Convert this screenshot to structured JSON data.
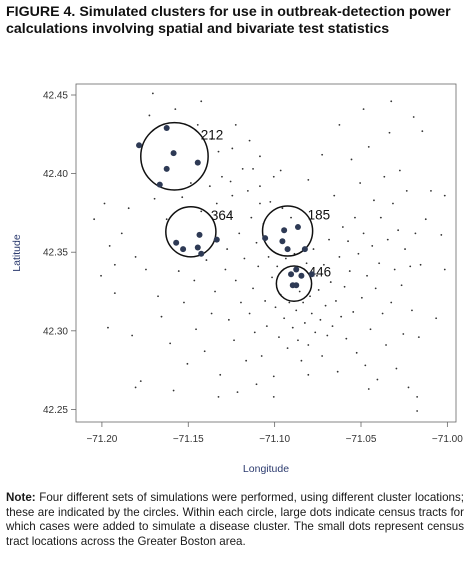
{
  "figure": {
    "title": "FIGURE 4. Simulated clusters for use in outbreak-detection power calculations involving spatial and bivariate test statistics",
    "note_label": "Note:",
    "note_text": "Four different sets of simulations were performed, using different cluster locations; these are indicated by the circles. Within each circle, large dots indicate census tracts for which cases were added to simulate a disease cluster. The small dots represent census tract locations across the Greater Boston area."
  },
  "chart_data": {
    "type": "scatter",
    "title": "",
    "xlabel": "Longitude",
    "ylabel": "Latitude",
    "xlim": [
      -71.215,
      -70.995
    ],
    "ylim": [
      42.242,
      42.457
    ],
    "x_ticks": [
      -71.2,
      -71.15,
      -71.1,
      -71.05,
      -71.0
    ],
    "x_tick_labels": [
      "−71.20",
      "−71.15",
      "−71.10",
      "−71.05",
      "−71.00"
    ],
    "y_ticks": [
      42.25,
      42.3,
      42.35,
      42.4,
      42.45
    ],
    "y_tick_labels": [
      "42.25",
      "42.30",
      "42.35",
      "42.40",
      "42.45"
    ],
    "grid": false,
    "clusters": [
      {
        "label": "212",
        "center": [
          -71.158,
          42.411
        ],
        "radius": 0.0195
      },
      {
        "label": "364",
        "center": [
          -71.1485,
          42.363
        ],
        "radius": 0.0145
      },
      {
        "label": "185",
        "center": [
          -71.0925,
          42.3635
        ],
        "radius": 0.0145
      },
      {
        "label": "446",
        "center": [
          -71.0888,
          42.33
        ],
        "radius": 0.0102
      }
    ],
    "case_tracts": [
      [
        -71.1785,
        42.418
      ],
      [
        -71.1625,
        42.429
      ],
      [
        -71.1585,
        42.413
      ],
      [
        -71.1625,
        42.403
      ],
      [
        -71.1665,
        42.393
      ],
      [
        -71.1445,
        42.407
      ],
      [
        -71.157,
        42.356
      ],
      [
        -71.153,
        42.352
      ],
      [
        -71.1445,
        42.353
      ],
      [
        -71.1435,
        42.361
      ],
      [
        -71.1425,
        42.349
      ],
      [
        -71.1335,
        42.358
      ],
      [
        -71.1055,
        42.359
      ],
      [
        -71.0945,
        42.364
      ],
      [
        -71.0955,
        42.357
      ],
      [
        -71.0865,
        42.366
      ],
      [
        -71.0925,
        42.352
      ],
      [
        -71.0825,
        42.352
      ],
      [
        -71.0905,
        42.336
      ],
      [
        -71.0875,
        42.339
      ],
      [
        -71.0845,
        42.335
      ],
      [
        -71.0785,
        42.336
      ],
      [
        -71.0895,
        42.329
      ],
      [
        -71.0875,
        42.329
      ]
    ],
    "census_tracts": [
      [
        -71.2045,
        42.371
      ],
      [
        -71.2005,
        42.335
      ],
      [
        -71.1985,
        42.381
      ],
      [
        -71.1955,
        42.354
      ],
      [
        -71.1925,
        42.342
      ],
      [
        -71.1885,
        42.362
      ],
      [
        -71.1845,
        42.378
      ],
      [
        -71.1825,
        42.297
      ],
      [
        -71.1805,
        42.347
      ],
      [
        -71.1775,
        42.268
      ],
      [
        -71.1745,
        42.339
      ],
      [
        -71.1725,
        42.437
      ],
      [
        -71.1695,
        42.384
      ],
      [
        -71.1675,
        42.322
      ],
      [
        -71.1655,
        42.309
      ],
      [
        -71.1625,
        42.371
      ],
      [
        -71.1605,
        42.292
      ],
      [
        -71.1575,
        42.441
      ],
      [
        -71.1555,
        42.338
      ],
      [
        -71.1535,
        42.385
      ],
      [
        -71.1525,
        42.318
      ],
      [
        -71.1505,
        42.279
      ],
      [
        -71.1485,
        42.394
      ],
      [
        -71.1465,
        42.332
      ],
      [
        -71.1455,
        42.301
      ],
      [
        -71.1425,
        42.376
      ],
      [
        -71.1405,
        42.287
      ],
      [
        -71.1395,
        42.345
      ],
      [
        -71.1375,
        42.392
      ],
      [
        -71.1365,
        42.311
      ],
      [
        -71.1345,
        42.325
      ],
      [
        -71.1335,
        42.381
      ],
      [
        -71.1315,
        42.272
      ],
      [
        -71.1305,
        42.398
      ],
      [
        -71.1285,
        42.339
      ],
      [
        -71.1275,
        42.352
      ],
      [
        -71.1265,
        42.307
      ],
      [
        -71.1255,
        42.374
      ],
      [
        -71.1245,
        42.386
      ],
      [
        -71.1235,
        42.294
      ],
      [
        -71.1225,
        42.332
      ],
      [
        -71.1215,
        42.261
      ],
      [
        -71.1205,
        42.362
      ],
      [
        -71.1195,
        42.318
      ],
      [
        -71.1185,
        42.403
      ],
      [
        -71.1175,
        42.346
      ],
      [
        -71.1165,
        42.281
      ],
      [
        -71.1155,
        42.389
      ],
      [
        -71.1145,
        42.311
      ],
      [
        -71.1135,
        42.372
      ],
      [
        -71.1125,
        42.327
      ],
      [
        -71.1115,
        42.299
      ],
      [
        -71.1105,
        42.356
      ],
      [
        -71.1095,
        42.341
      ],
      [
        -71.1085,
        42.411
      ],
      [
        -71.1075,
        42.284
      ],
      [
        -71.1065,
        42.368
      ],
      [
        -71.1055,
        42.319
      ],
      [
        -71.1045,
        42.303
      ],
      [
        -71.1035,
        42.347
      ],
      [
        -71.1025,
        42.382
      ],
      [
        -71.1015,
        42.334
      ],
      [
        -71.1005,
        42.271
      ],
      [
        -71.0995,
        42.315
      ],
      [
        -71.0985,
        42.341
      ],
      [
        -71.0975,
        42.296
      ],
      [
        -71.0965,
        42.323
      ],
      [
        -71.0955,
        42.378
      ],
      [
        -71.0945,
        42.308
      ],
      [
        -71.0935,
        42.346
      ],
      [
        -71.0925,
        42.289
      ],
      [
        -71.0915,
        42.318
      ],
      [
        -71.0905,
        42.372
      ],
      [
        -71.0895,
        42.302
      ],
      [
        -71.0885,
        42.349
      ],
      [
        -71.0875,
        42.313
      ],
      [
        -71.0865,
        42.294
      ],
      [
        -71.0855,
        42.325
      ],
      [
        -71.0845,
        42.281
      ],
      [
        -71.0835,
        42.318
      ],
      [
        -71.0825,
        42.305
      ],
      [
        -71.0815,
        42.343
      ],
      [
        -71.0805,
        42.291
      ],
      [
        -71.0795,
        42.322
      ],
      [
        -71.0785,
        42.311
      ],
      [
        -71.0775,
        42.352
      ],
      [
        -71.0765,
        42.299
      ],
      [
        -71.0755,
        42.335
      ],
      [
        -71.0745,
        42.326
      ],
      [
        -71.0735,
        42.307
      ],
      [
        -71.0725,
        42.284
      ],
      [
        -71.0715,
        42.342
      ],
      [
        -71.0705,
        42.316
      ],
      [
        -71.0695,
        42.297
      ],
      [
        -71.0685,
        42.358
      ],
      [
        -71.0675,
        42.331
      ],
      [
        -71.0665,
        42.303
      ],
      [
        -71.0655,
        42.386
      ],
      [
        -71.0645,
        42.319
      ],
      [
        -71.0635,
        42.274
      ],
      [
        -71.0625,
        42.347
      ],
      [
        -71.0615,
        42.309
      ],
      [
        -71.0605,
        42.366
      ],
      [
        -71.0595,
        42.328
      ],
      [
        -71.0585,
        42.295
      ],
      [
        -71.0575,
        42.357
      ],
      [
        -71.0565,
        42.338
      ],
      [
        -71.0555,
        42.409
      ],
      [
        -71.0545,
        42.312
      ],
      [
        -71.0535,
        42.372
      ],
      [
        -71.0525,
        42.286
      ],
      [
        -71.0515,
        42.349
      ],
      [
        -71.0505,
        42.394
      ],
      [
        -71.0495,
        42.321
      ],
      [
        -71.0485,
        42.362
      ],
      [
        -71.0475,
        42.278
      ],
      [
        -71.0465,
        42.335
      ],
      [
        -71.0455,
        42.417
      ],
      [
        -71.0445,
        42.301
      ],
      [
        -71.0435,
        42.354
      ],
      [
        -71.0425,
        42.383
      ],
      [
        -71.0415,
        42.327
      ],
      [
        -71.0405,
        42.269
      ],
      [
        -71.0395,
        42.343
      ],
      [
        -71.0385,
        42.372
      ],
      [
        -71.0375,
        42.311
      ],
      [
        -71.0365,
        42.398
      ],
      [
        -71.0355,
        42.291
      ],
      [
        -71.0345,
        42.358
      ],
      [
        -71.0335,
        42.426
      ],
      [
        -71.0325,
        42.318
      ],
      [
        -71.0315,
        42.381
      ],
      [
        -71.0305,
        42.339
      ],
      [
        -71.0295,
        42.276
      ],
      [
        -71.0285,
        42.364
      ],
      [
        -71.0275,
        42.402
      ],
      [
        -71.0265,
        42.329
      ],
      [
        -71.0255,
        42.298
      ],
      [
        -71.0245,
        42.352
      ],
      [
        -71.0235,
        42.389
      ],
      [
        -71.0225,
        42.264
      ],
      [
        -71.0215,
        42.341
      ],
      [
        -71.0205,
        42.313
      ],
      [
        -71.0195,
        42.436
      ],
      [
        -71.0185,
        42.362
      ],
      [
        -71.0175,
        42.258
      ],
      [
        -71.0165,
        42.296
      ],
      [
        -71.0155,
        42.342
      ],
      [
        -71.0125,
        42.371
      ],
      [
        -71.0095,
        42.389
      ],
      [
        -71.0065,
        42.308
      ],
      [
        -71.0035,
        42.361
      ],
      [
        -71.0015,
        42.386
      ],
      [
        -71.0015,
        42.339
      ],
      [
        -71.0175,
        42.249
      ],
      [
        -71.0455,
        42.263
      ],
      [
        -71.0805,
        42.272
      ],
      [
        -71.1005,
        42.258
      ],
      [
        -71.1105,
        42.266
      ],
      [
        -71.1325,
        42.258
      ],
      [
        -71.1585,
        42.262
      ],
      [
        -71.1805,
        42.264
      ],
      [
        -71.1925,
        42.324
      ],
      [
        -71.1965,
        42.302
      ],
      [
        -71.1705,
        42.451
      ],
      [
        -71.1425,
        42.446
      ],
      [
        -71.1225,
        42.431
      ],
      [
        -71.1145,
        42.421
      ],
      [
        -71.1325,
        42.414
      ],
      [
        -71.1255,
        42.395
      ],
      [
        -71.1085,
        42.392
      ],
      [
        -71.0965,
        42.402
      ],
      [
        -71.0805,
        42.396
      ],
      [
        -71.0725,
        42.412
      ],
      [
        -71.0625,
        42.431
      ],
      [
        -71.0485,
        42.441
      ],
      [
        -71.0325,
        42.446
      ],
      [
        -71.0145,
        42.427
      ],
      [
        -71.1365,
        42.422
      ],
      [
        -71.1445,
        42.431
      ],
      [
        -71.1245,
        42.416
      ],
      [
        -71.1085,
        42.381
      ],
      [
        -71.1005,
        42.398
      ],
      [
        -71.1125,
        42.403
      ]
    ]
  }
}
